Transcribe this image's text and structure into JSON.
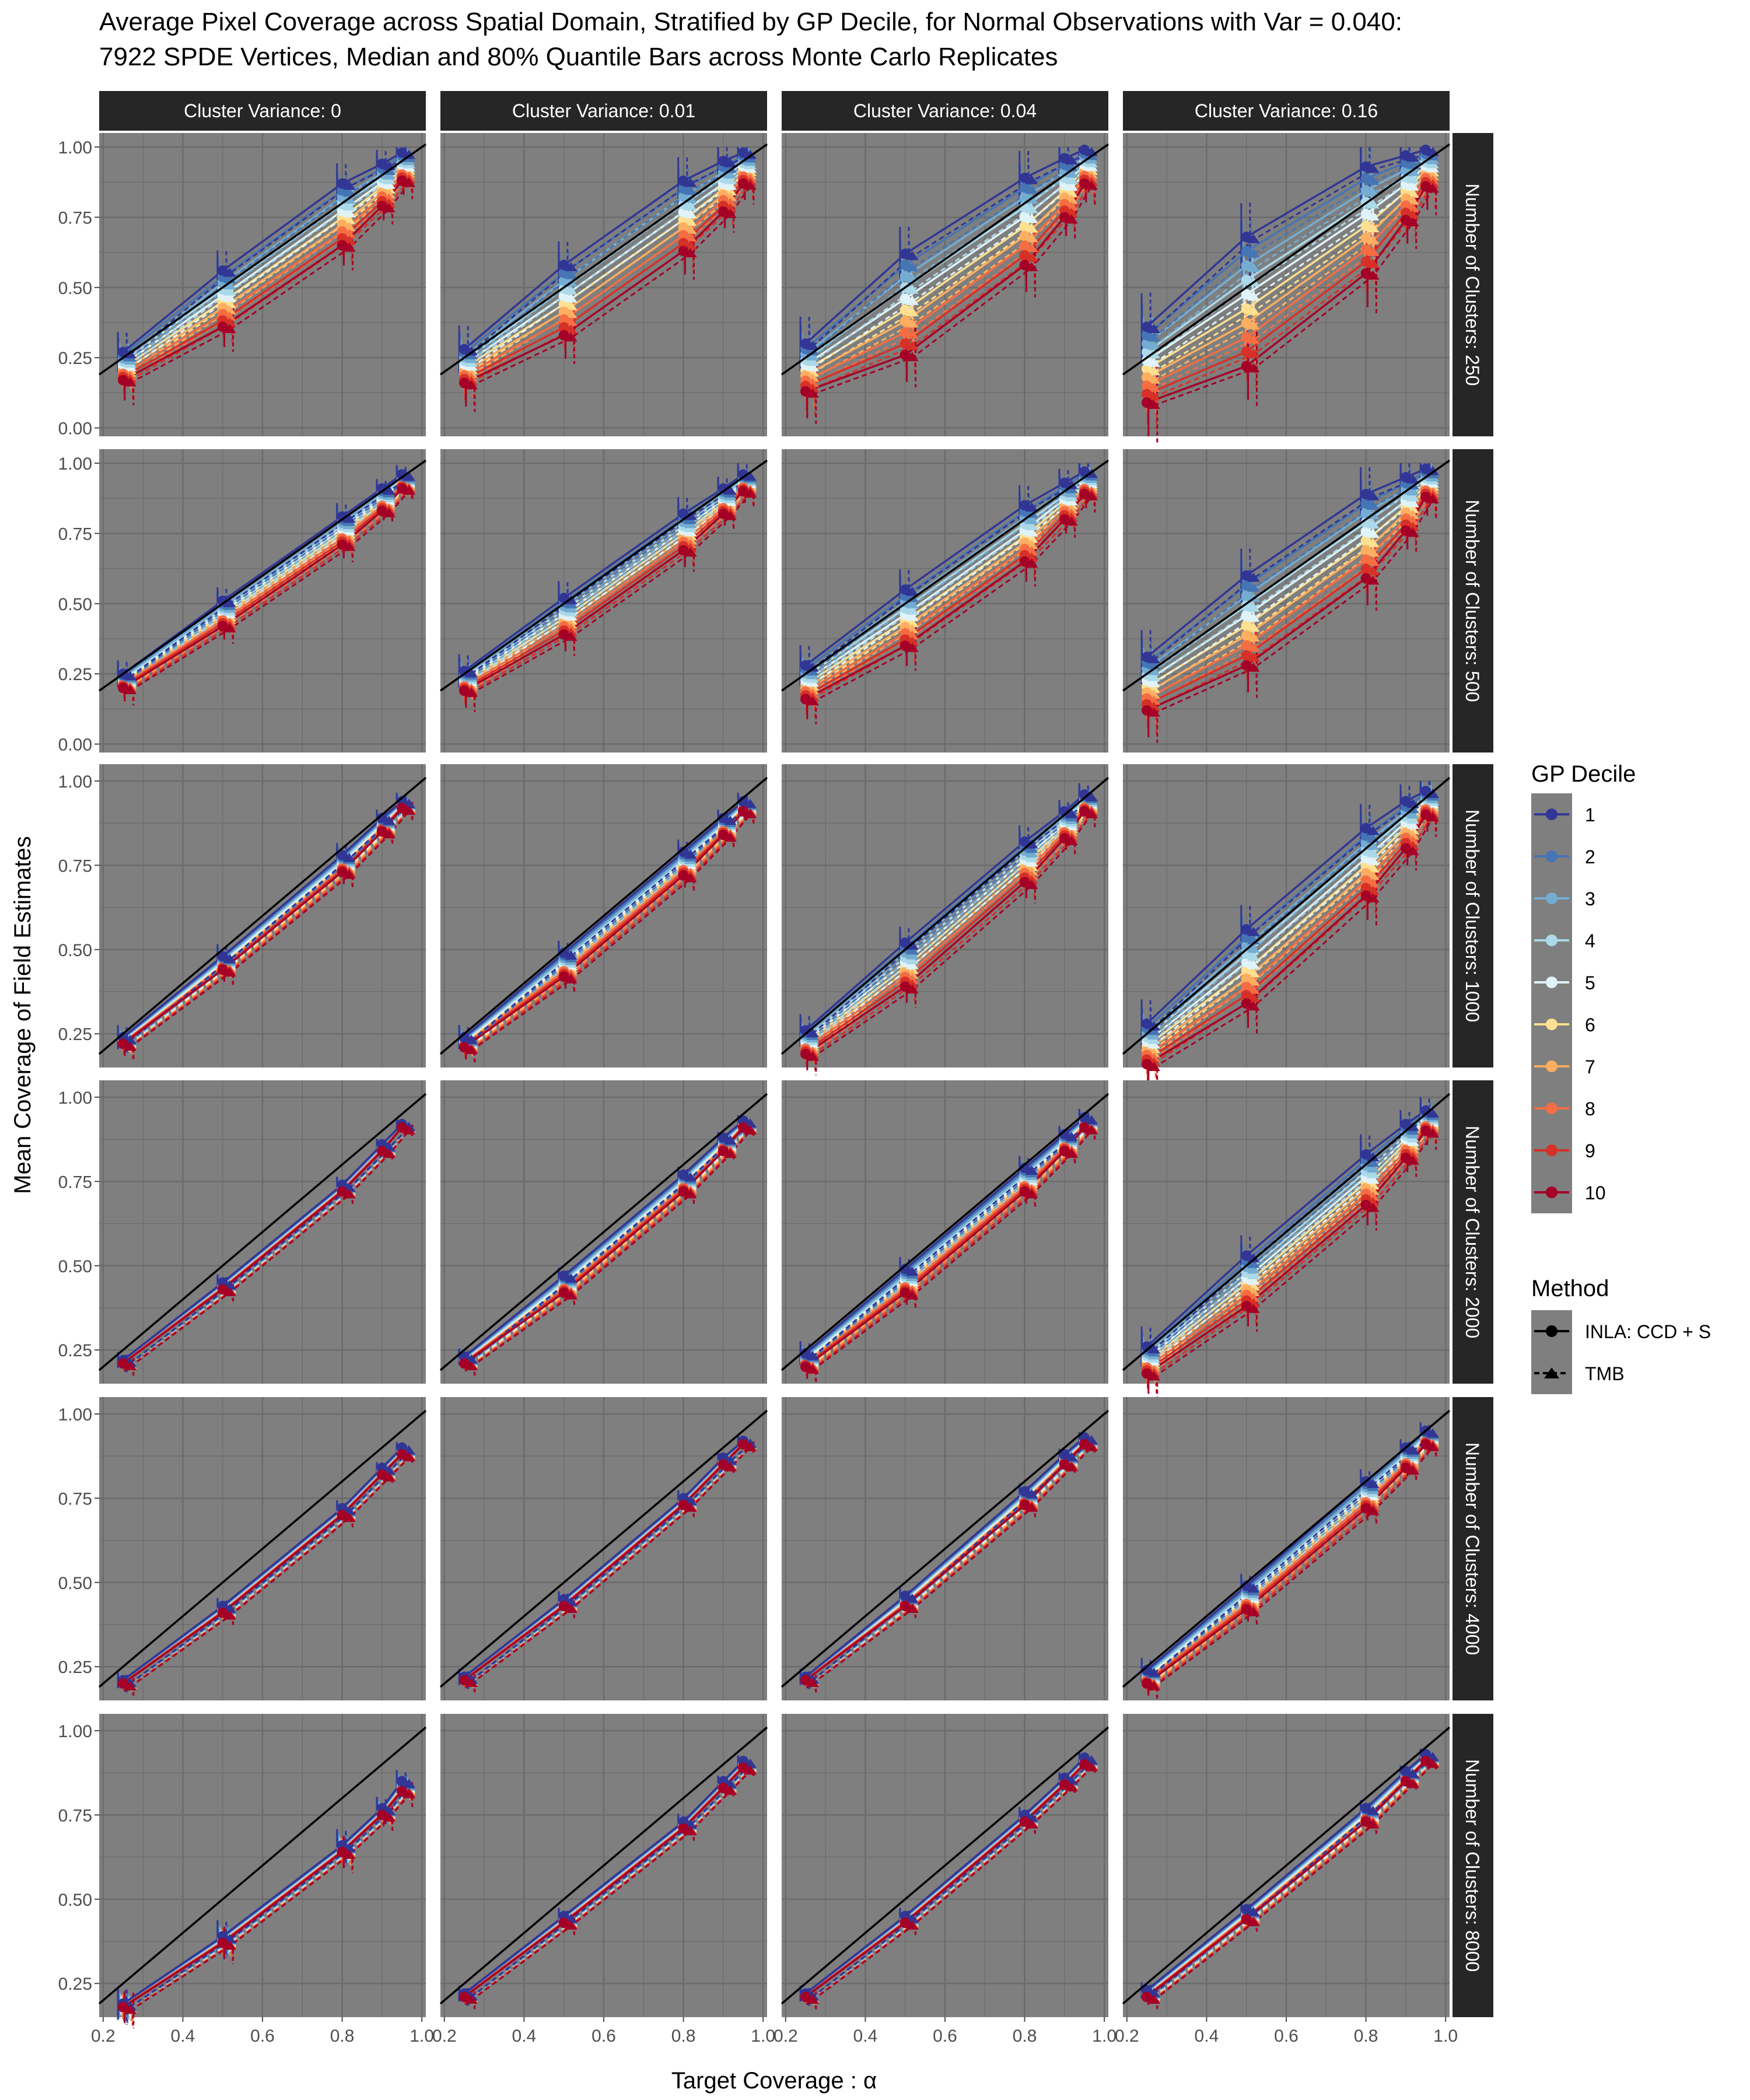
{
  "title": "Average Pixel Coverage across Spatial Domain, Stratified by GP Decile, for Normal Observations with Var = 0.040:\n 7922 SPDE Vertices, Median and  80% Quantile Bars across Monte Carlo Replicates",
  "xlabel": "Target Coverage :  α",
  "ylabel": "Mean Coverage of Field Estimates",
  "col_strips": [
    "Cluster Variance: 0",
    "Cluster Variance: 0.01",
    "Cluster Variance: 0.04",
    "Cluster Variance: 0.16"
  ],
  "row_strips": [
    "Number of Clusters: 250",
    "Number of Clusters: 500",
    "Number of Clusters: 1000",
    "Number of Clusters: 2000",
    "Number of Clusters: 4000",
    "Number of Clusters: 8000"
  ],
  "colors": {
    "panel_bg": "#7f7f7f",
    "grid": "#6b6b6b",
    "strip_bg": "#262626",
    "strip_text": "#ffffff",
    "identity_line": "#000000",
    "deciles": [
      "#313695",
      "#4575b4",
      "#74add1",
      "#abd9e9",
      "#e0f3f8",
      "#fee090",
      "#fdae61",
      "#f46d43",
      "#d73027",
      "#a50026"
    ]
  },
  "legend": {
    "decile_title": "GP Decile",
    "deciles": [
      "1",
      "2",
      "3",
      "4",
      "5",
      "6",
      "7",
      "8",
      "9",
      "10"
    ],
    "method_title": "Method",
    "methods": [
      "INLA: CCD + S",
      "TMB"
    ]
  },
  "chart_data": {
    "type": "line",
    "x": [
      0.25,
      0.5,
      0.8,
      0.9,
      0.95
    ],
    "x_ticks": [
      "0.2",
      "0.4",
      "0.6",
      "0.8",
      "1.0"
    ],
    "y_ticks_rows": [
      [
        "0.00",
        "0.25",
        "0.50",
        "0.75",
        "1.00"
      ],
      [
        "0.00",
        "0.25",
        "0.50",
        "0.75",
        "1.00"
      ],
      [
        "0.25",
        "0.50",
        "0.75",
        "1.00"
      ],
      [
        "0.25",
        "0.50",
        "0.75",
        "1.00"
      ],
      [
        "0.25",
        "0.50",
        "0.75",
        "1.00"
      ],
      [
        "0.25",
        "0.50",
        "0.75",
        "1.00"
      ]
    ],
    "ylim_rows": [
      [
        -0.03,
        1.05
      ],
      [
        -0.03,
        1.05
      ],
      [
        0.15,
        1.05
      ],
      [
        0.15,
        1.05
      ],
      [
        0.15,
        1.05
      ],
      [
        0.15,
        1.05
      ]
    ],
    "xlim": [
      0.19,
      1.01
    ],
    "identity_line": true,
    "grid": true,
    "series_by_panel": [
      [
        {
          "inla": {
            "low": [
              0.17,
              0.36,
              0.65,
              0.79,
              0.88
            ],
            "high": [
              0.27,
              0.56,
              0.87,
              0.94,
              0.98
            ],
            "spread": 0.06
          },
          "tmb_offset": -0.01
        },
        {
          "inla": {
            "low": [
              0.16,
              0.33,
              0.63,
              0.77,
              0.87
            ],
            "high": [
              0.28,
              0.58,
              0.88,
              0.95,
              0.98
            ],
            "spread": 0.07
          },
          "tmb_offset": -0.01
        },
        {
          "inla": {
            "low": [
              0.13,
              0.26,
              0.58,
              0.75,
              0.87
            ],
            "high": [
              0.3,
              0.62,
              0.89,
              0.96,
              0.99
            ],
            "spread": 0.08
          },
          "tmb_offset": -0.01
        },
        {
          "inla": {
            "low": [
              0.09,
              0.22,
              0.55,
              0.74,
              0.86
            ],
            "high": [
              0.36,
              0.68,
              0.93,
              0.97,
              0.99
            ],
            "spread": 0.1
          },
          "tmb_offset": -0.01
        }
      ],
      [
        {
          "inla": {
            "low": [
              0.2,
              0.42,
              0.71,
              0.83,
              0.91
            ],
            "high": [
              0.25,
              0.51,
              0.81,
              0.91,
              0.96
            ],
            "spread": 0.04
          },
          "tmb_offset": -0.01
        },
        {
          "inla": {
            "low": [
              0.19,
              0.39,
              0.69,
              0.82,
              0.9
            ],
            "high": [
              0.26,
              0.52,
              0.82,
              0.91,
              0.96
            ],
            "spread": 0.05
          },
          "tmb_offset": -0.01
        },
        {
          "inla": {
            "low": [
              0.16,
              0.35,
              0.65,
              0.8,
              0.89
            ],
            "high": [
              0.28,
              0.55,
              0.85,
              0.93,
              0.97
            ],
            "spread": 0.06
          },
          "tmb_offset": -0.01
        },
        {
          "inla": {
            "low": [
              0.12,
              0.28,
              0.59,
              0.76,
              0.88
            ],
            "high": [
              0.31,
              0.6,
              0.89,
              0.95,
              0.98
            ],
            "spread": 0.08
          },
          "tmb_offset": -0.01
        }
      ],
      [
        {
          "inla": {
            "low": [
              0.22,
              0.44,
              0.73,
              0.85,
              0.92
            ],
            "high": [
              0.24,
              0.48,
              0.78,
              0.89,
              0.94
            ],
            "spread": 0.03
          },
          "tmb_offset": -0.01
        },
        {
          "inla": {
            "low": [
              0.21,
              0.42,
              0.72,
              0.84,
              0.91
            ],
            "high": [
              0.24,
              0.49,
              0.79,
              0.89,
              0.94
            ],
            "spread": 0.03
          },
          "tmb_offset": -0.01
        },
        {
          "inla": {
            "low": [
              0.19,
              0.39,
              0.7,
              0.83,
              0.91
            ],
            "high": [
              0.26,
              0.52,
              0.82,
              0.91,
              0.96
            ],
            "spread": 0.04
          },
          "tmb_offset": -0.01
        },
        {
          "inla": {
            "low": [
              0.16,
              0.34,
              0.66,
              0.8,
              0.9
            ],
            "high": [
              0.28,
              0.56,
              0.86,
              0.94,
              0.97
            ],
            "spread": 0.06
          },
          "tmb_offset": -0.01
        }
      ],
      [
        {
          "inla": {
            "low": [
              0.21,
              0.43,
              0.72,
              0.84,
              0.91
            ],
            "high": [
              0.22,
              0.45,
              0.74,
              0.86,
              0.92
            ],
            "spread": 0.02
          },
          "tmb_offset": -0.01
        },
        {
          "inla": {
            "low": [
              0.21,
              0.42,
              0.72,
              0.84,
              0.91
            ],
            "high": [
              0.23,
              0.47,
              0.77,
              0.88,
              0.93
            ],
            "spread": 0.02
          },
          "tmb_offset": -0.01
        },
        {
          "inla": {
            "low": [
              0.2,
              0.42,
              0.72,
              0.84,
              0.91
            ],
            "high": [
              0.24,
              0.49,
              0.79,
              0.89,
              0.94
            ],
            "spread": 0.03
          },
          "tmb_offset": -0.01
        },
        {
          "inla": {
            "low": [
              0.18,
              0.38,
              0.68,
              0.82,
              0.9
            ],
            "high": [
              0.26,
              0.53,
              0.83,
              0.92,
              0.96
            ],
            "spread": 0.05
          },
          "tmb_offset": -0.01
        }
      ],
      [
        {
          "inla": {
            "low": [
              0.2,
              0.41,
              0.7,
              0.82,
              0.88
            ],
            "high": [
              0.21,
              0.43,
              0.72,
              0.84,
              0.9
            ],
            "spread": 0.02
          },
          "tmb_offset": -0.01
        },
        {
          "inla": {
            "low": [
              0.21,
              0.43,
              0.73,
              0.85,
              0.91
            ],
            "high": [
              0.22,
              0.45,
              0.75,
              0.87,
              0.92
            ],
            "spread": 0.02
          },
          "tmb_offset": -0.01
        },
        {
          "inla": {
            "low": [
              0.21,
              0.43,
              0.73,
              0.85,
              0.91
            ],
            "high": [
              0.22,
              0.46,
              0.77,
              0.88,
              0.93
            ],
            "spread": 0.02
          },
          "tmb_offset": -0.01
        },
        {
          "inla": {
            "low": [
              0.2,
              0.42,
              0.72,
              0.84,
              0.91
            ],
            "high": [
              0.24,
              0.49,
              0.8,
              0.9,
              0.95
            ],
            "spread": 0.03
          },
          "tmb_offset": -0.01
        }
      ],
      [
        {
          "inla": {
            "low": [
              0.18,
              0.37,
              0.64,
              0.75,
              0.82
            ],
            "high": [
              0.19,
              0.39,
              0.66,
              0.77,
              0.85
            ],
            "spread": 0.04
          },
          "tmb_offset": -0.01
        },
        {
          "inla": {
            "low": [
              0.21,
              0.43,
              0.71,
              0.83,
              0.89
            ],
            "high": [
              0.22,
              0.45,
              0.73,
              0.85,
              0.91
            ],
            "spread": 0.02
          },
          "tmb_offset": -0.01
        },
        {
          "inla": {
            "low": [
              0.21,
              0.43,
              0.73,
              0.84,
              0.9
            ],
            "high": [
              0.22,
              0.45,
              0.75,
              0.86,
              0.92
            ],
            "spread": 0.02
          },
          "tmb_offset": -0.01
        },
        {
          "inla": {
            "low": [
              0.21,
              0.44,
              0.73,
              0.85,
              0.91
            ],
            "high": [
              0.23,
              0.47,
              0.77,
              0.88,
              0.93
            ],
            "spread": 0.02
          },
          "tmb_offset": -0.01
        }
      ]
    ]
  }
}
